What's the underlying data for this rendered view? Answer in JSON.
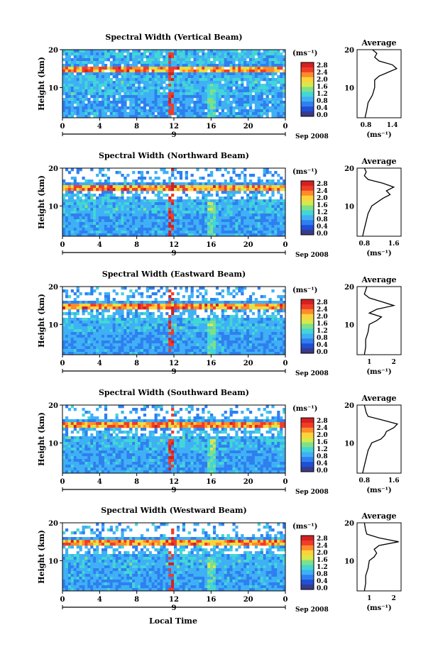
{
  "figure": {
    "xlabel_bottom": "Local Time",
    "date_label": "Sep 2008",
    "day_label": "9",
    "ylabel": "Height (km)",
    "colorbar_unit": "(ms⁻¹)",
    "colorbar_ticks": [
      "2.8",
      "2.4",
      "2.0",
      "1.6",
      "1.2",
      "0.8",
      "0.4",
      "0.0"
    ],
    "average_title": "Average",
    "average_xlabel": "(ms⁻¹)",
    "x_ticks": [
      "0",
      "4",
      "8",
      "12",
      "16",
      "20",
      "0"
    ],
    "y_ticks": [
      "20",
      "10"
    ],
    "colormap": [
      "#3a3a8c",
      "#1f4fd8",
      "#2f7ff0",
      "#3fb0f5",
      "#42d6d6",
      "#7fe08a",
      "#d8e84a",
      "#ffd23c",
      "#ff8c28",
      "#f03c28",
      "#d42020"
    ]
  },
  "chart_data": [
    {
      "type": "heatmap",
      "title": "Spectral Width (Vertical Beam)",
      "xlim": [
        0,
        24
      ],
      "ylim": [
        2,
        20
      ],
      "color_range": [
        0.0,
        3.0
      ],
      "average_profile": {
        "xticks": [
          "0.8",
          "1.4"
        ],
        "xlim": [
          0.6,
          1.6
        ],
        "height": [
          2,
          4,
          6,
          8,
          10,
          12,
          13,
          14,
          15,
          16,
          17,
          18,
          19,
          20
        ],
        "width": [
          0.78,
          0.82,
          0.85,
          0.95,
          1.0,
          1.0,
          1.1,
          1.3,
          1.5,
          1.4,
          1.1,
          1.0,
          1.05,
          0.95
        ]
      }
    },
    {
      "type": "heatmap",
      "title": "Spectral Width (Northward Beam)",
      "xlim": [
        0,
        24
      ],
      "ylim": [
        2,
        20
      ],
      "color_range": [
        0.0,
        3.0
      ],
      "average_profile": {
        "xticks": [
          "0.8",
          "1.6"
        ],
        "xlim": [
          0.6,
          1.8
        ],
        "height": [
          2,
          4,
          6,
          8,
          10,
          12,
          13,
          14,
          15,
          16,
          17,
          18,
          19,
          20
        ],
        "width": [
          0.75,
          0.8,
          0.85,
          0.9,
          1.0,
          1.3,
          1.5,
          1.4,
          1.6,
          1.3,
          0.9,
          0.8,
          0.85,
          0.8
        ]
      }
    },
    {
      "type": "heatmap",
      "title": "Spectral Width (Eastward Beam)",
      "xlim": [
        0,
        24
      ],
      "ylim": [
        2,
        20
      ],
      "color_range": [
        0.0,
        3.0
      ],
      "average_profile": {
        "xticks": [
          "1",
          "2"
        ],
        "xlim": [
          0.5,
          2.3
        ],
        "height": [
          2,
          4,
          6,
          8,
          10,
          11,
          12,
          13,
          14,
          15,
          16,
          17,
          18,
          20
        ],
        "width": [
          0.8,
          0.85,
          0.85,
          0.95,
          1.0,
          1.3,
          1.5,
          1.0,
          1.3,
          2.0,
          1.5,
          1.0,
          0.8,
          0.9
        ]
      }
    },
    {
      "type": "heatmap",
      "title": "Spectral Width (Southward Beam)",
      "xlim": [
        0,
        24
      ],
      "ylim": [
        2,
        20
      ],
      "color_range": [
        0.0,
        3.0
      ],
      "average_profile": {
        "xticks": [
          "0.8",
          "1.6"
        ],
        "xlim": [
          0.6,
          1.8
        ],
        "height": [
          2,
          4,
          6,
          8,
          10,
          11,
          12,
          13,
          14,
          15,
          16,
          17,
          18,
          20
        ],
        "width": [
          0.75,
          0.8,
          0.85,
          0.9,
          1.0,
          1.25,
          1.35,
          1.4,
          1.6,
          1.7,
          1.3,
          0.9,
          0.85,
          0.8
        ]
      }
    },
    {
      "type": "heatmap",
      "title": "Spectral Width (Westward Beam)",
      "xlim": [
        0,
        24
      ],
      "ylim": [
        2,
        20
      ],
      "color_range": [
        0.0,
        3.0
      ],
      "average_profile": {
        "xticks": [
          "1",
          "2"
        ],
        "xlim": [
          0.5,
          2.3
        ],
        "height": [
          2,
          4,
          6,
          8,
          10,
          11,
          12,
          13,
          14,
          15,
          16,
          17,
          18,
          20
        ],
        "width": [
          0.8,
          0.85,
          0.85,
          0.95,
          1.0,
          1.2,
          1.3,
          1.2,
          1.4,
          2.2,
          1.4,
          0.9,
          0.85,
          0.8
        ]
      }
    }
  ]
}
